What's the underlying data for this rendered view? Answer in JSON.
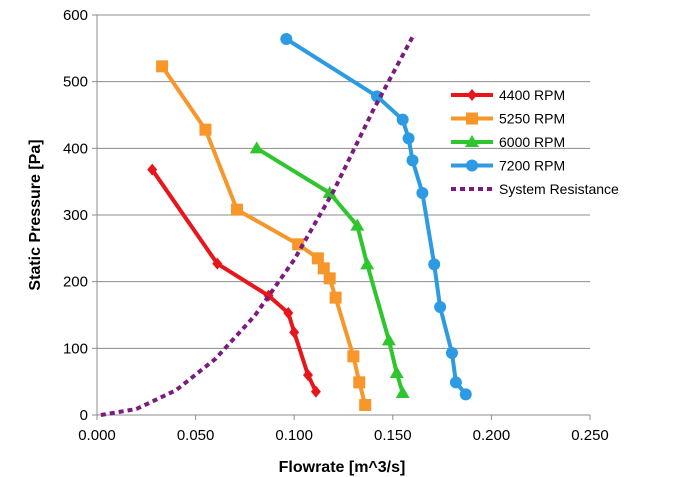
{
  "chart_data": {
    "type": "line",
    "xlabel": "Flowrate [m^3/s]",
    "ylabel": "Static Pressure [Pa]",
    "xlim": [
      0,
      0.25
    ],
    "ylim": [
      0,
      600
    ],
    "x_ticks": [
      "0.000",
      "0.050",
      "0.100",
      "0.150",
      "0.200",
      "0.250"
    ],
    "y_ticks": [
      "0",
      "100",
      "200",
      "300",
      "400",
      "500",
      "600"
    ],
    "grid": "horizontal",
    "legend_position": "right",
    "series": [
      {
        "name": "4400 RPM",
        "color": "#e8151b",
        "marker": "diamond",
        "points": [
          [
            0.028,
            368
          ],
          [
            0.061,
            227
          ],
          [
            0.087,
            179
          ],
          [
            0.097,
            153
          ],
          [
            0.1,
            124
          ],
          [
            0.107,
            60
          ],
          [
            0.111,
            35
          ]
        ]
      },
      {
        "name": "5250 RPM",
        "color": "#f7962b",
        "marker": "square",
        "points": [
          [
            0.033,
            523
          ],
          [
            0.055,
            428
          ],
          [
            0.071,
            308
          ],
          [
            0.102,
            256
          ],
          [
            0.112,
            235
          ],
          [
            0.115,
            220
          ],
          [
            0.118,
            205
          ],
          [
            0.121,
            176
          ],
          [
            0.13,
            88
          ],
          [
            0.133,
            49
          ],
          [
            0.136,
            15
          ]
        ]
      },
      {
        "name": "6000 RPM",
        "color": "#2ec52e",
        "marker": "triangle",
        "points": [
          [
            0.081,
            400
          ],
          [
            0.118,
            333
          ],
          [
            0.132,
            284
          ],
          [
            0.137,
            226
          ],
          [
            0.148,
            112
          ],
          [
            0.152,
            63
          ],
          [
            0.155,
            33
          ]
        ]
      },
      {
        "name": "7200 RPM",
        "color": "#2c9be3",
        "marker": "circle",
        "points": [
          [
            0.096,
            564
          ],
          [
            0.142,
            478
          ],
          [
            0.155,
            443
          ],
          [
            0.158,
            415
          ],
          [
            0.16,
            382
          ],
          [
            0.165,
            333
          ],
          [
            0.171,
            226
          ],
          [
            0.174,
            162
          ],
          [
            0.18,
            93
          ],
          [
            0.182,
            49
          ],
          [
            0.187,
            31
          ]
        ]
      },
      {
        "name": "System Resistance",
        "color": "#7b1b7e",
        "marker": "none",
        "dashed": true,
        "points": [
          [
            0.002,
            0
          ],
          [
            0.02,
            9
          ],
          [
            0.04,
            37
          ],
          [
            0.06,
            84
          ],
          [
            0.08,
            149
          ],
          [
            0.1,
            233
          ],
          [
            0.12,
            336
          ],
          [
            0.14,
            457
          ],
          [
            0.16,
            567
          ]
        ]
      }
    ]
  }
}
